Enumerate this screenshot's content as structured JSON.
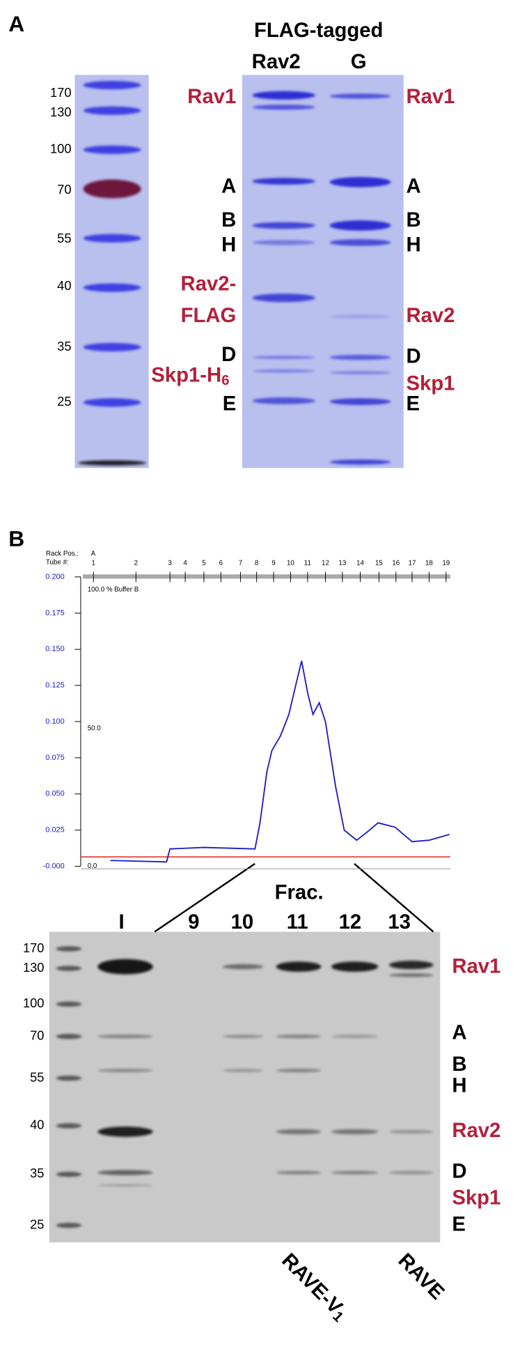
{
  "panel_a": {
    "label": "A",
    "header": "FLAG-tagged",
    "lanes": [
      "Rav2",
      "G"
    ],
    "markers": [
      "170",
      "130",
      "100",
      "70",
      "55",
      "40",
      "35",
      "25"
    ],
    "left_labels": [
      "Rav1",
      "A",
      "B",
      "H",
      "Rav2-",
      "FLAG",
      "D",
      "E"
    ],
    "left_skp1": {
      "text": "Skp1-H",
      "subscript": "6"
    },
    "right_labels": [
      "Rav1",
      "A",
      "B",
      "H",
      "Rav2",
      "D",
      "Skp1",
      "E"
    ]
  },
  "panel_b": {
    "label": "B",
    "rack_pos_label": "Rack Pos.:",
    "rack_pos": "A",
    "tube_label": "Tube #:",
    "gradient_labels": [
      "100.0  %  Buffer B",
      "50.0",
      "0.0"
    ],
    "gel": {
      "header": "Frac.",
      "lanes": [
        "I",
        "9",
        "10",
        "11",
        "12",
        "13"
      ],
      "markers": [
        "170",
        "130",
        "100",
        "70",
        "55",
        "40",
        "35",
        "25"
      ],
      "right_labels": [
        "Rav1",
        "A",
        "B",
        "H",
        "Rav2",
        "D",
        "Skp1",
        "E"
      ],
      "bottom_labels": [
        {
          "text": "RAVE-V",
          "subscript": "1"
        },
        {
          "text": "RAVE"
        }
      ]
    }
  },
  "chart_data": {
    "type": "line",
    "x": [
      1.4,
      2.9,
      3.0,
      5,
      7.9,
      8.2,
      8.6,
      8.9,
      9.4,
      9.9,
      10.3,
      10.65,
      11.0,
      11.3,
      11.65,
      12.0,
      12.6,
      13.1,
      13.8,
      14.5,
      14.95,
      15.95,
      17.0,
      18.0,
      19.2
    ],
    "series": [
      {
        "color": "#1a1acc",
        "values": [
          0.004,
          0.003,
          0.012,
          0.013,
          0.012,
          0.03,
          0.065,
          0.08,
          0.09,
          0.105,
          0.125,
          0.142,
          0.12,
          0.105,
          0.113,
          0.1,
          0.055,
          0.025,
          0.018,
          0.025,
          0.03,
          0.027,
          0.017,
          0.018,
          0.022
        ]
      }
    ],
    "xlim": [
      0.75,
      19.25
    ],
    "xticks": [
      1,
      2,
      3,
      4,
      5,
      6,
      7,
      8,
      9,
      10,
      11,
      12,
      13,
      14,
      15,
      16,
      17,
      18,
      19
    ],
    "ylim": [
      0,
      0.2
    ],
    "yticks": [
      {
        "value": 0.2,
        "label": "0.200"
      },
      {
        "value": 0.175,
        "label": "0.175"
      },
      {
        "value": 0.15,
        "label": "0.150"
      },
      {
        "value": 0.125,
        "label": "0.125"
      },
      {
        "value": 0.1,
        "label": "0.100"
      },
      {
        "value": 0.075,
        "label": "0.075"
      },
      {
        "value": 0.05,
        "label": "0.050"
      },
      {
        "value": 0.025,
        "label": "0.025"
      },
      {
        "value": 0,
        "label": "-0.000"
      }
    ]
  }
}
